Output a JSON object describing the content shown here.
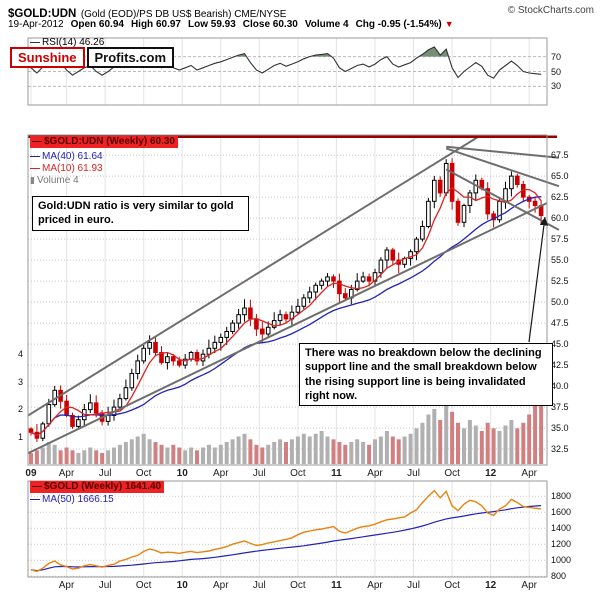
{
  "header": {
    "symbol": "$GOLD:UDN",
    "description": "(Gold (EOD)/PS DB US$ Bearish) CME/NYSE",
    "copyright": "© StockCharts.com",
    "date": "19-Apr-2012",
    "quote": [
      {
        "label": "Open",
        "value": "60.94"
      },
      {
        "label": "High",
        "value": "60.97"
      },
      {
        "label": "Low",
        "value": "59.93"
      },
      {
        "label": "Close",
        "value": "60.30"
      },
      {
        "label": "Volume",
        "value": "4"
      },
      {
        "label": "Chg",
        "value": "-0.95 (-1.54%)"
      }
    ]
  },
  "logo": {
    "part1": "Sunshine",
    "part2": "Profits.com"
  },
  "rsi_panel": {
    "legend": "RSI(14) 46.26"
  },
  "main_panel": {
    "legend_symbol": "$GOLD:UDN (Weekly) 60.30",
    "legend_ma40": "MA(40) 61.64",
    "legend_ma10": "MA(10) 61.93",
    "legend_volume": "Volume 4"
  },
  "gold_panel": {
    "legend_symbol": "$GOLD (Weekly) 1641.40",
    "legend_ma50": "MA(50) 1666.15"
  },
  "annotations": {
    "box1": "Gold:UDN ratio is very similar to gold priced in euro.",
    "box2": "There was no breakdown below the declining support line and the small breakdown below the rising support line is being invalidated right now."
  },
  "colors": {
    "down_red": "#cc0000",
    "up_black": "#000000",
    "ma_blue": "#2222bb",
    "ma_red": "#dd2222",
    "volume_gray": "#b0b0b0",
    "volume_red": "#d08080",
    "gold_orange": "#e8820e",
    "trendline_gray": "#6e6e6e",
    "grid_v": "#e4e4e4",
    "grid_h": "#c8c8c8",
    "resistance_red": "#990000",
    "arrow_black": "#1a1a1a"
  },
  "x_axis": {
    "tmax": 87.5,
    "ticks_main": [
      {
        "label": "09",
        "t": 0.5,
        "bold": true
      },
      {
        "label": "Apr",
        "t": 6.5
      },
      {
        "label": "Jul",
        "t": 13
      },
      {
        "label": "Oct",
        "t": 19.5
      },
      {
        "label": "10",
        "t": 26,
        "bold": true
      },
      {
        "label": "Apr",
        "t": 32.5
      },
      {
        "label": "Jul",
        "t": 39
      },
      {
        "label": "Oct",
        "t": 45.5
      },
      {
        "label": "11",
        "t": 52,
        "bold": true
      },
      {
        "label": "Apr",
        "t": 58.5
      },
      {
        "label": "Jul",
        "t": 65
      },
      {
        "label": "Oct",
        "t": 71.5
      },
      {
        "label": "12",
        "t": 78,
        "bold": true
      },
      {
        "label": "Apr",
        "t": 84.5
      }
    ],
    "ticks_bottom": [
      {
        "label": "Apr",
        "t": 6.5
      },
      {
        "label": "Jul",
        "t": 13
      },
      {
        "label": "Oct",
        "t": 19.5
      },
      {
        "label": "10",
        "t": 26,
        "bold": true
      },
      {
        "label": "Apr",
        "t": 32.5
      },
      {
        "label": "Jul",
        "t": 39
      },
      {
        "label": "Oct",
        "t": 45.5
      },
      {
        "label": "11",
        "t": 52,
        "bold": true
      },
      {
        "label": "Apr",
        "t": 58.5
      },
      {
        "label": "Jul",
        "t": 65
      },
      {
        "label": "Oct",
        "t": 71.5
      },
      {
        "label": "12",
        "t": 78,
        "bold": true
      },
      {
        "label": "Apr",
        "t": 84.5
      }
    ]
  },
  "chart_data": [
    {
      "type": "line",
      "title": "RSI(14)",
      "last_value": 46.26,
      "ylim": [
        5,
        95
      ],
      "levels": [
        70,
        50,
        30
      ],
      "line_color": "#333333",
      "overbought_fill": "#708a6e",
      "values": [
        55,
        48,
        56,
        65,
        72,
        62,
        52,
        45,
        50,
        55,
        58,
        50,
        45,
        50,
        56,
        60,
        65,
        70,
        74,
        77,
        75,
        65,
        55,
        58,
        55,
        52,
        55,
        58,
        52,
        55,
        58,
        61,
        63,
        66,
        69,
        72,
        74,
        62,
        52,
        48,
        53,
        58,
        61,
        57,
        60,
        63,
        67,
        70,
        72,
        73,
        74,
        68,
        55,
        50,
        54,
        58,
        60,
        56,
        60,
        66,
        70,
        60,
        56,
        59,
        62,
        68,
        73,
        79,
        83,
        72,
        80,
        55,
        42,
        50,
        56,
        62,
        57,
        45,
        41,
        52,
        58,
        64,
        58,
        50,
        48,
        47,
        46.3
      ]
    },
    {
      "type": "candlestick",
      "title": "$GOLD:UDN (Weekly)",
      "interval": "weekly",
      "last_close": 60.3,
      "ylim": [
        30.6,
        69.9
      ],
      "y_ticks": [
        "67.5",
        "65.0",
        "62.5",
        "60.0",
        "57.5",
        "55.0",
        "52.5",
        "50.0",
        "47.5",
        "45.0",
        "42.5",
        "40.0",
        "37.5",
        "35.0",
        "32.5"
      ],
      "volume_ticks": [
        "4",
        "3",
        "2",
        "1"
      ],
      "closes": [
        34.5,
        33.8,
        35.5,
        37.8,
        39.5,
        38.2,
        36.5,
        35.2,
        36.0,
        37.2,
        38.0,
        36.8,
        35.8,
        36.5,
        37.5,
        38.5,
        39.8,
        41.5,
        43.0,
        44.5,
        45.2,
        44.0,
        42.8,
        43.5,
        43.0,
        42.5,
        43.2,
        44.0,
        43.0,
        43.8,
        44.5,
        45.2,
        45.8,
        46.5,
        47.5,
        48.5,
        49.3,
        48.0,
        46.8,
        46.2,
        47.0,
        47.8,
        48.5,
        48.0,
        48.8,
        49.5,
        50.5,
        51.2,
        52.0,
        52.5,
        53.0,
        52.5,
        51.0,
        50.5,
        51.5,
        52.5,
        53.0,
        52.5,
        53.5,
        55.0,
        56.2,
        55.0,
        54.5,
        55.2,
        56.0,
        57.5,
        59.0,
        62.0,
        64.5,
        63.0,
        66.5,
        62.0,
        59.5,
        61.5,
        63.0,
        64.5,
        63.5,
        60.5,
        59.8,
        62.0,
        63.5,
        65.0,
        64.0,
        62.5,
        62.0,
        61.5,
        60.3
      ],
      "volumes": [
        0.4,
        0.5,
        0.6,
        0.8,
        0.7,
        0.5,
        0.6,
        0.5,
        0.4,
        0.5,
        0.6,
        0.5,
        0.4,
        0.5,
        0.6,
        0.7,
        0.8,
        0.9,
        1.0,
        1.1,
        0.9,
        0.8,
        0.7,
        0.6,
        0.7,
        0.6,
        0.5,
        0.6,
        0.5,
        0.6,
        0.7,
        0.6,
        0.7,
        0.8,
        0.9,
        1.0,
        1.1,
        0.9,
        0.7,
        0.6,
        0.7,
        0.8,
        0.9,
        0.8,
        0.9,
        1.0,
        1.1,
        1.0,
        1.1,
        1.2,
        1.0,
        0.9,
        0.8,
        0.7,
        0.8,
        0.9,
        0.8,
        0.7,
        0.9,
        1.0,
        1.2,
        1.0,
        0.9,
        1.0,
        1.1,
        1.3,
        1.5,
        1.8,
        2.0,
        1.6,
        2.2,
        1.9,
        1.5,
        1.3,
        1.6,
        1.4,
        1.2,
        1.5,
        1.3,
        1.2,
        1.4,
        1.6,
        1.3,
        1.5,
        1.8,
        2.2,
        4.0
      ],
      "trendlines": [
        {
          "name": "rising-support",
          "points": [
            [
              0,
              32.0
            ],
            [
              87.5,
              61.8
            ]
          ],
          "clip": true
        },
        {
          "name": "rising-channel-top",
          "points": [
            [
              0,
              36.5
            ],
            [
              78,
              70.6
            ]
          ],
          "clip": true
        },
        {
          "name": "declining-resistance-upper",
          "points": [
            [
              70.5,
              68.5
            ],
            [
              89.5,
              67.2
            ]
          ],
          "clip": false
        },
        {
          "name": "declining-resistance",
          "points": [
            [
              70.5,
              68.3
            ],
            [
              89.5,
              63.8
            ]
          ],
          "clip": false
        },
        {
          "name": "declining-support",
          "points": [
            [
              70.5,
              65.8
            ],
            [
              89.5,
              58.6
            ]
          ],
          "clip": false
        }
      ],
      "hline": {
        "value": 69.7,
        "color": "#990000"
      }
    },
    {
      "type": "line",
      "title": "$GOLD (Weekly)",
      "last_value": 1641.4,
      "ylim": [
        790,
        1990
      ],
      "y_ticks": [
        "1800",
        "1600",
        "1400",
        "1200",
        "1000",
        "800"
      ],
      "values": [
        880,
        860,
        900,
        960,
        990,
        940,
        920,
        890,
        900,
        930,
        945,
        930,
        915,
        935,
        950,
        990,
        1010,
        1040,
        1060,
        1110,
        1140,
        1120,
        1090,
        1100,
        1095,
        1085,
        1100,
        1110,
        1095,
        1105,
        1115,
        1135,
        1150,
        1170,
        1200,
        1220,
        1240,
        1210,
        1185,
        1195,
        1215,
        1230,
        1245,
        1260,
        1280,
        1320,
        1350,
        1365,
        1380,
        1390,
        1405,
        1420,
        1360,
        1340,
        1370,
        1400,
        1420,
        1430,
        1450,
        1480,
        1505,
        1515,
        1530,
        1540,
        1590,
        1630,
        1720,
        1800,
        1870,
        1780,
        1860,
        1680,
        1620,
        1700,
        1750,
        1730,
        1680,
        1590,
        1560,
        1640,
        1680,
        1760,
        1720,
        1670,
        1660,
        1650,
        1641
      ]
    }
  ]
}
